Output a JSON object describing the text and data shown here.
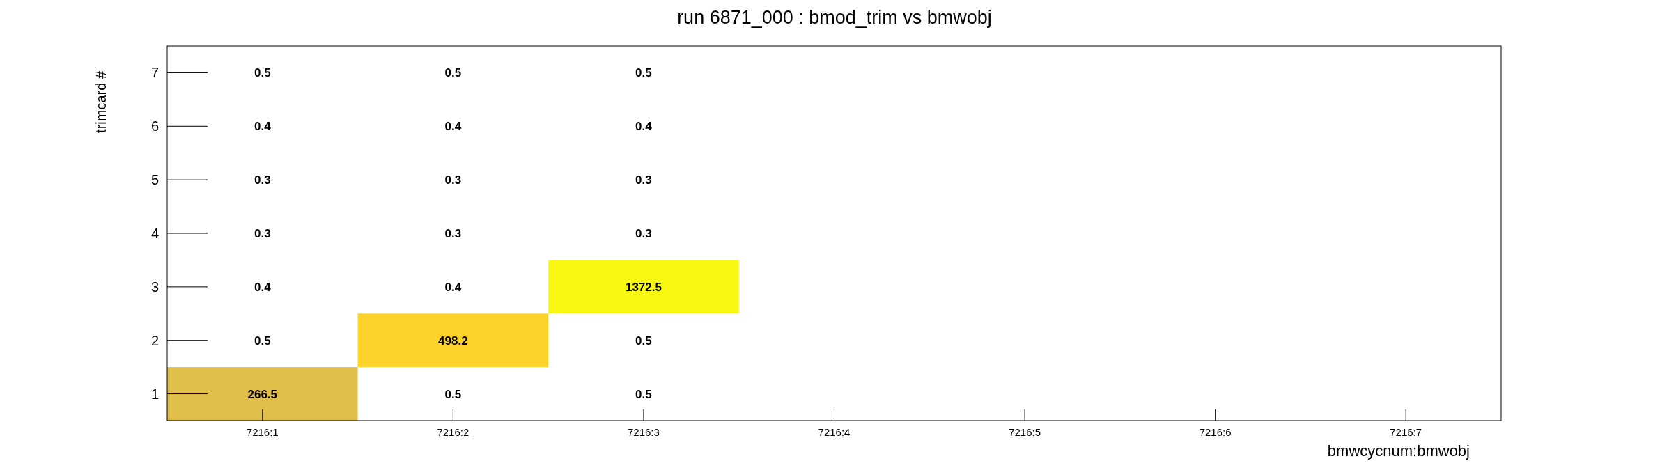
{
  "chart_data": {
    "type": "heatmap",
    "title": "run 6871_000 : bmod_trim vs bmwobj",
    "xlabel": "bmwcycnum:bmwobj",
    "ylabel": "trimcard #",
    "categories": [
      "7216:1",
      "7216:2",
      "7216:3",
      "7216:4",
      "7216:5",
      "7216:6",
      "7216:7"
    ],
    "y_categories": [
      "7",
      "6",
      "5",
      "4",
      "3",
      "2",
      "1"
    ],
    "cells": [
      [
        0.5,
        0.5,
        0.5,
        null,
        null,
        null,
        null
      ],
      [
        0.4,
        0.4,
        0.4,
        null,
        null,
        null,
        null
      ],
      [
        0.3,
        0.3,
        0.3,
        null,
        null,
        null,
        null
      ],
      [
        0.3,
        0.3,
        0.3,
        null,
        null,
        null,
        null
      ],
      [
        0.4,
        0.4,
        1372.5,
        null,
        null,
        null,
        null
      ],
      [
        0.5,
        498.2,
        0.5,
        null,
        null,
        null,
        null
      ],
      [
        266.5,
        0.5,
        0.5,
        null,
        null,
        null,
        null
      ]
    ],
    "colors": [
      [
        null,
        null,
        null,
        null,
        null,
        null,
        null
      ],
      [
        null,
        null,
        null,
        null,
        null,
        null,
        null
      ],
      [
        null,
        null,
        null,
        null,
        null,
        null,
        null
      ],
      [
        null,
        null,
        null,
        null,
        null,
        null,
        null
      ],
      [
        null,
        null,
        "#f8f812",
        null,
        null,
        null,
        null
      ],
      [
        null,
        "#fbd22a",
        null,
        null,
        null,
        null,
        null
      ],
      [
        "#e0be4a",
        null,
        null,
        null,
        null,
        null,
        null
      ]
    ],
    "data_labels": true
  }
}
